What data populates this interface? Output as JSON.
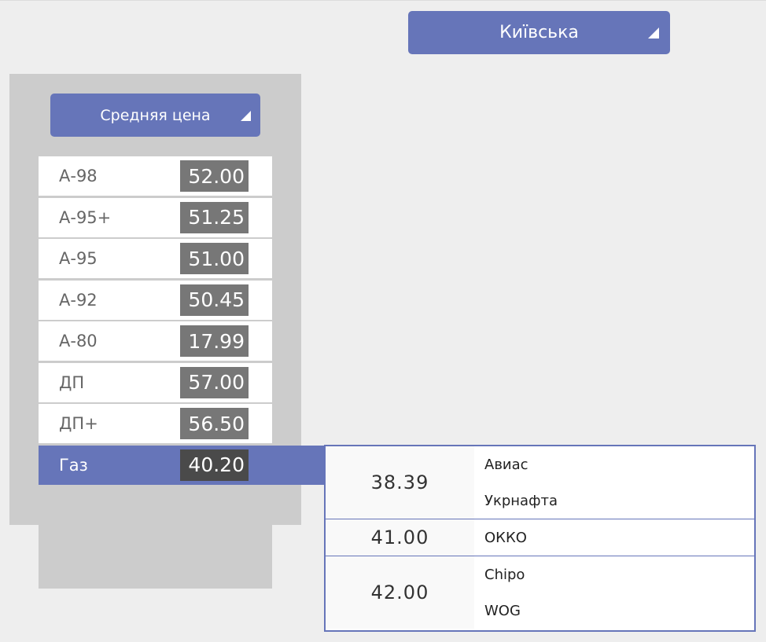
{
  "region_select": {
    "value": "Київська"
  },
  "mode_select": {
    "value": "Средняя цена"
  },
  "fuels": [
    {
      "name": "А-98",
      "price": "52.00"
    },
    {
      "name": "А-95+",
      "price": "51.25"
    },
    {
      "name": "А-95",
      "price": "51.00"
    },
    {
      "name": "А-92",
      "price": "50.45"
    },
    {
      "name": "А-80",
      "price": "17.99"
    },
    {
      "name": "ДП",
      "price": "57.00"
    },
    {
      "name": "ДП+",
      "price": "56.50"
    },
    {
      "name": "Газ",
      "price": "40.20",
      "selected": true
    }
  ],
  "popup": [
    {
      "price": "38.39",
      "stations": [
        "Авиас",
        "Укрнафта"
      ]
    },
    {
      "price": "41.00",
      "stations": [
        "ОККО"
      ]
    },
    {
      "price": "42.00",
      "stations": [
        "Chipo",
        "WOG"
      ]
    }
  ],
  "colors": {
    "accent": "#6675b9",
    "panel": "#cccccc",
    "value_box": "#777777",
    "selected_value_box": "#4a4a4a"
  }
}
